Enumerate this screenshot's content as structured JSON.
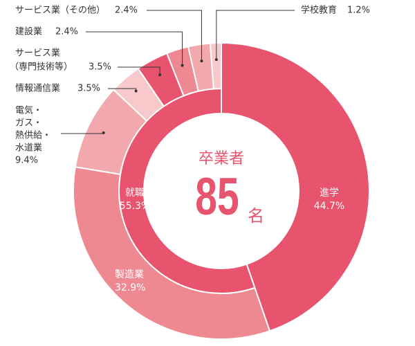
{
  "chart_data": {
    "type": "nested-donut",
    "center_title": "卒業者",
    "center_value": 85,
    "center_unit": "名",
    "inner": {
      "categories": [
        "進学",
        "就職"
      ],
      "values": [
        44.7,
        55.3
      ],
      "value_labels": [
        "44.7%",
        "55.3%"
      ],
      "colors": [
        "#e8536d",
        "#e8536d"
      ]
    },
    "outer": {
      "categories": [
        [
          "製造業"
        ],
        [
          "電気・",
          "ガス・",
          "熱供給・",
          "水道業"
        ],
        [
          "情報通信業"
        ],
        [
          "サービス業",
          "（専門技術等）"
        ],
        [
          "建設業"
        ],
        [
          "サービス業（その他）"
        ],
        [
          "学校教育"
        ]
      ],
      "values": [
        32.9,
        9.4,
        3.5,
        3.5,
        2.4,
        2.4,
        1.2
      ],
      "value_labels": [
        "32.9%",
        "9.4%",
        "3.5%",
        "3.5%",
        "2.4%",
        "2.4%",
        "1.2%"
      ],
      "colors": [
        "#ee8891",
        "#f1a9ad",
        "#f7c9cb",
        "#e8536d",
        "#ee8891",
        "#f1a9ad",
        "#f7c9cb"
      ]
    }
  }
}
